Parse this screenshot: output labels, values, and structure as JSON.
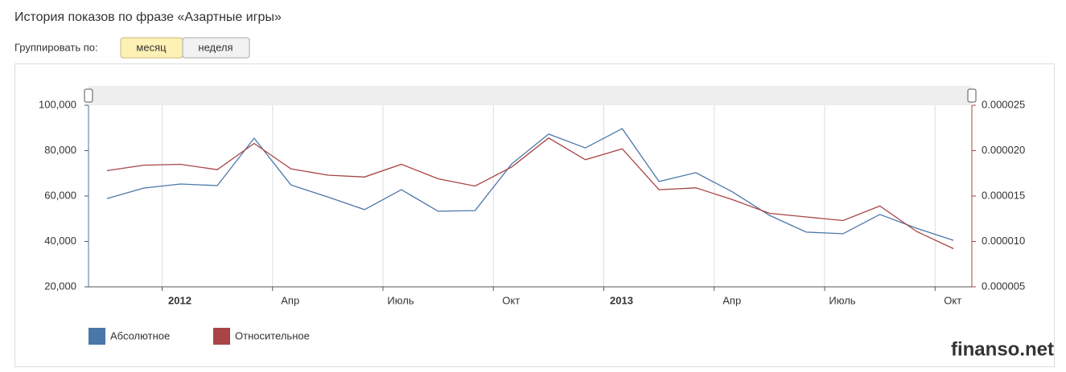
{
  "header": {
    "title": "История показов по фразе «Азартные игры»",
    "group_label": "Группировать по:",
    "buttons": [
      "месяц",
      "неделя"
    ]
  },
  "watermark": "finanso.net",
  "chart_data": {
    "type": "line",
    "categories": [
      null,
      null,
      "2012",
      null,
      null,
      "Апр",
      null,
      null,
      "Июль",
      null,
      null,
      "Окт",
      null,
      null,
      "2013",
      null,
      null,
      "Апр",
      null,
      null,
      "Июль",
      null,
      null,
      "Окт"
    ],
    "series": [
      {
        "name": "Абсолютное",
        "color": "#4a76a8",
        "values": [
          58900,
          63500,
          65300,
          64600,
          85500,
          64900,
          59600,
          54000,
          62800,
          53300,
          53600,
          74200,
          87300,
          81200,
          89700,
          66400,
          70300,
          61800,
          51500,
          44100,
          43400,
          51900,
          45800,
          40500
        ]
      },
      {
        "name": "Относительное",
        "color": "#a84444",
        "axis": "y2",
        "values": [
          1.78e-05,
          1.84e-05,
          1.85e-05,
          1.79e-05,
          2.08e-05,
          1.8e-05,
          1.73e-05,
          1.71e-05,
          1.85e-05,
          1.69e-05,
          1.61e-05,
          1.82e-05,
          2.14e-05,
          1.9e-05,
          2.02e-05,
          1.57e-05,
          1.59e-05,
          1.46e-05,
          1.31e-05,
          1.27e-05,
          1.23e-05,
          1.39e-05,
          1.11e-05,
          9.2e-06
        ]
      }
    ],
    "ylim": [
      20000,
      100000
    ],
    "yticks": [
      {
        "value": 20000,
        "label": "20,000"
      },
      {
        "value": 40000,
        "label": "40,000"
      },
      {
        "value": 60000,
        "label": "60,000"
      },
      {
        "value": 80000,
        "label": "80,000"
      },
      {
        "value": 100000,
        "label": "100,000"
      }
    ],
    "y2lim": [
      5e-06,
      2.5e-05
    ],
    "y2ticks": [
      5e-06,
      {
        "value": 1e-05,
        "label": "0.000010"
      },
      1.5e-05,
      {
        "value": 2e-05,
        "label": "0.000020"
      },
      2.5e-05
    ],
    "grid": true
  }
}
